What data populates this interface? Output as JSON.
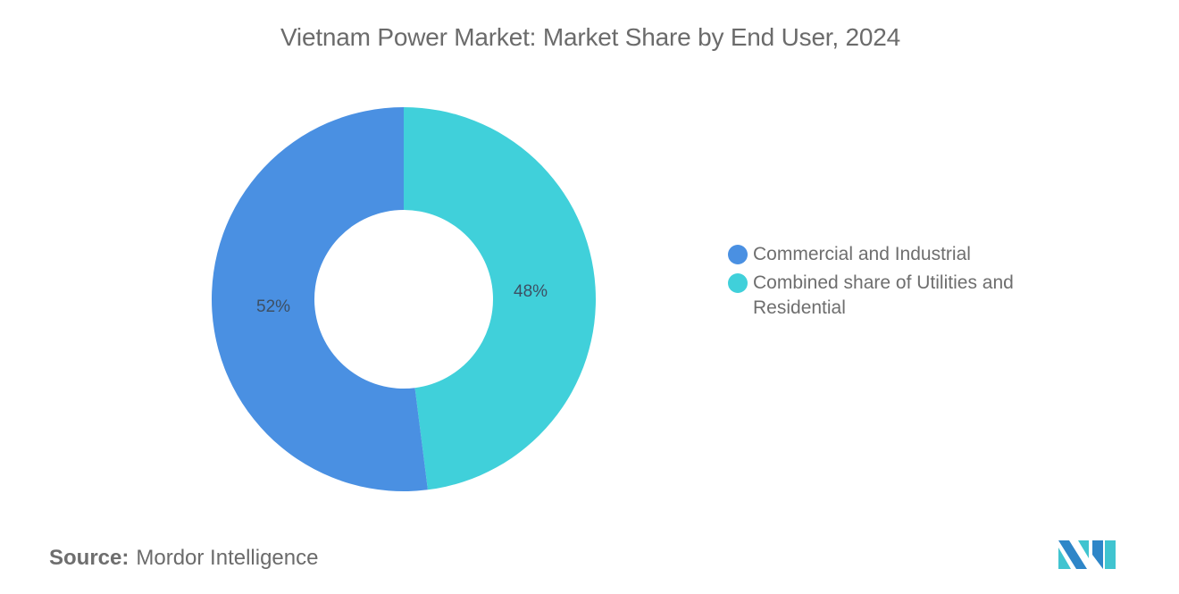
{
  "title": "Vietnam Power Market: Market Share by End User, 2024",
  "chart_data": {
    "type": "pie",
    "subtype": "donut",
    "title": "Vietnam Power Market: Market Share by End User, 2024",
    "categories": [
      "Commercial and Industrial",
      "Combined share of Utilities and Residential"
    ],
    "values": [
      52,
      48
    ],
    "unit": "%",
    "colors": [
      "#4a90e2",
      "#40d0da"
    ],
    "data_labels": [
      "52%",
      "48%"
    ],
    "legend_position": "right"
  },
  "labels": {
    "slice0": "52%",
    "slice1": "48%"
  },
  "legend": {
    "items": [
      {
        "label": "Commercial and Industrial",
        "color": "#4a90e2"
      },
      {
        "label": "Combined share of Utilities and Residential",
        "color": "#40d0da"
      }
    ]
  },
  "footer": {
    "source_label": "Source:",
    "source_value": "Mordor Intelligence"
  },
  "logo": {
    "name": "mordor-intelligence-logo"
  }
}
